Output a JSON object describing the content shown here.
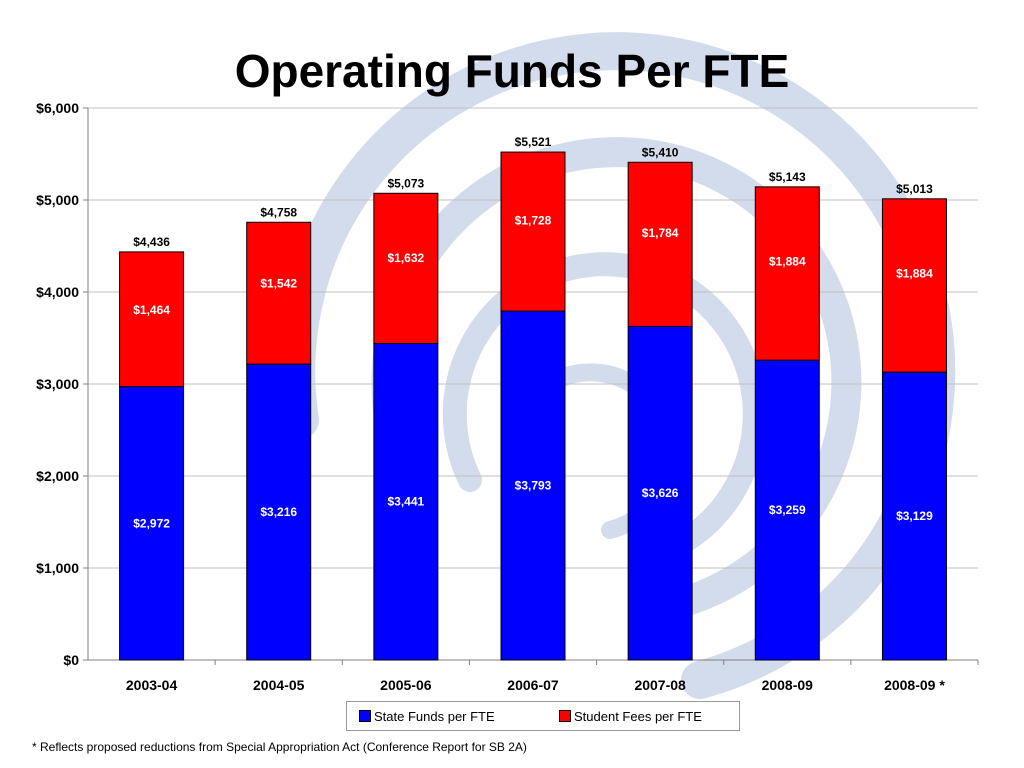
{
  "title": "Operating Funds Per FTE",
  "footnote": "* Reflects proposed reductions from Special Appropriation Act (Conference Report for SB 2A)",
  "colors": {
    "state": "#0000ff",
    "fees": "#ff0000",
    "swirl": "#c8d4e8",
    "gridline": "#c0c0c0"
  },
  "legend": [
    {
      "label": "State Funds per FTE",
      "color": "#0000ff"
    },
    {
      "label": "Student Fees per FTE",
      "color": "#ff0000"
    }
  ],
  "chart_data": {
    "type": "bar",
    "stacked": true,
    "title": "Operating Funds Per FTE",
    "categories": [
      "2003-04",
      "2004-05",
      "2005-06",
      "2006-07",
      "2007-08",
      "2008-09",
      "2008-09 *"
    ],
    "series": [
      {
        "name": "State Funds per FTE",
        "values": [
          2972,
          3216,
          3441,
          3793,
          3626,
          3259,
          3129
        ],
        "labels": [
          "$2,972",
          "$3,216",
          "$3,441",
          "$3,793",
          "$3,626",
          "$3,259",
          "$3,129"
        ]
      },
      {
        "name": "Student Fees per FTE",
        "values": [
          1464,
          1542,
          1632,
          1728,
          1784,
          1884,
          1884
        ],
        "labels": [
          "$1,464",
          "$1,542",
          "$1,632",
          "$1,728",
          "$1,784",
          "$1,884",
          "$1,884"
        ]
      }
    ],
    "totals": [
      4436,
      4758,
      5073,
      5521,
      5410,
      5143,
      5013
    ],
    "total_labels": [
      "$4,436",
      "$4,758",
      "$5,073",
      "$5,521",
      "$5,410",
      "$5,143",
      "$5,013"
    ],
    "ylim": [
      0,
      6000
    ],
    "yticks": [
      0,
      1000,
      2000,
      3000,
      4000,
      5000,
      6000
    ],
    "ytick_labels": [
      "$0",
      "$1,000",
      "$2,000",
      "$3,000",
      "$4,000",
      "$5,000",
      "$6,000"
    ],
    "xlabel": "",
    "ylabel": "",
    "grid": true,
    "legend_position": "bottom"
  }
}
